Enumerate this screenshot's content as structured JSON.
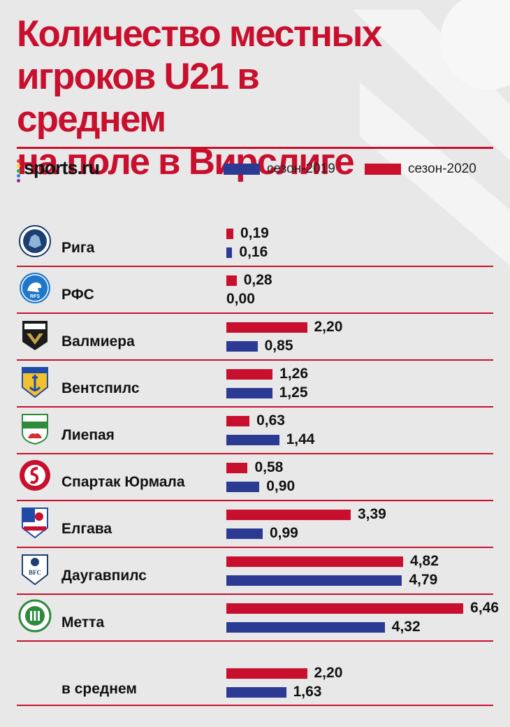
{
  "title": "Количество местных\nигроков U21 в среднем\nна поле в Вирслиге",
  "brand": "sports.ru",
  "colors": {
    "accent": "#c8102e",
    "season_2019": "#2b3a93",
    "season_2020": "#c8102e",
    "background": "#e8e8e8",
    "brand_dots": [
      "#e53935",
      "#fdd835",
      "#43a047",
      "#1e88e5",
      "#8e24aa"
    ]
  },
  "chart_data": {
    "type": "bar",
    "orientation": "horizontal",
    "categories": [
      "Рига",
      "РФС",
      "Валмиера",
      "Вентспилс",
      "Лиепая",
      "Спартак Юрмала",
      "Елгава",
      "Даугавпилс",
      "Метта",
      "в среднем"
    ],
    "series": [
      {
        "name": "сезон-2020",
        "values": [
          0.19,
          0.28,
          2.2,
          1.26,
          0.63,
          0.58,
          3.39,
          4.82,
          6.46,
          2.2
        ],
        "labels": [
          "0,19",
          "0,28",
          "2,20",
          "1,26",
          "0,63",
          "0,58",
          "3,39",
          "4,82",
          "6,46",
          "2,20"
        ]
      },
      {
        "name": "сезон-2019",
        "values": [
          0.16,
          0.0,
          0.85,
          1.25,
          1.44,
          0.9,
          0.99,
          4.79,
          4.32,
          1.63
        ],
        "labels": [
          "0,16",
          "0,00",
          "0,85",
          "1,25",
          "1,44",
          "0,90",
          "0,99",
          "4,79",
          "4,32",
          "1,63"
        ]
      }
    ],
    "legend": [
      "сезон-2019",
      "сезон-2020"
    ],
    "legend_placement": "top-right",
    "xlim": [
      0,
      7
    ],
    "grid": false
  },
  "badges": [
    "riga-badge-icon",
    "rfs-badge-icon",
    "valmiera-badge-icon",
    "ventspils-badge-icon",
    "liepaja-badge-icon",
    "spartaks-badge-icon",
    "jelgava-badge-icon",
    "daugavpils-badge-icon",
    "metta-badge-icon",
    null
  ]
}
